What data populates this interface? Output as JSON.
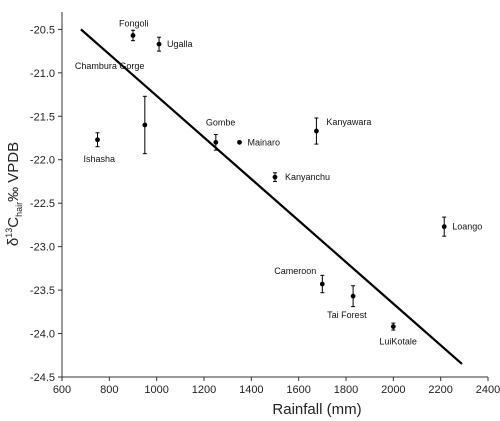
{
  "chart_data": {
    "type": "scatter",
    "title": "",
    "xlabel": "Rainfall (mm)",
    "ylabel": {
      "prefix": "δ",
      "sup": "13",
      "main": "C",
      "sub": "hair",
      "suffix": "‰ VPDB"
    },
    "xlim": [
      600,
      2400
    ],
    "ylim": [
      -24.5,
      -20.3
    ],
    "xticks": [
      600,
      800,
      1000,
      1200,
      1400,
      1600,
      1800,
      2000,
      2200,
      2400
    ],
    "yticks": [
      -24.5,
      -24.0,
      -23.5,
      -23.0,
      -22.5,
      -22.0,
      -21.5,
      -21.0,
      -20.5
    ],
    "ytick_labels": [
      "-24.5",
      "-24.0",
      "-23.5",
      "-23.0",
      "-22.5",
      "-22.0",
      "-21.5",
      "-21.0",
      "-20.5"
    ],
    "grid": false,
    "points": [
      {
        "label": "Fongoli",
        "x": 900,
        "y": -20.57,
        "err": 0.06
      },
      {
        "label": "Ugalla",
        "x": 1010,
        "y": -20.67,
        "err": 0.08
      },
      {
        "label": "Chambura Gorge",
        "x": 950,
        "y": -21.6,
        "err": 0.33
      },
      {
        "label": "Ishasha",
        "x": 750,
        "y": -21.77,
        "err": 0.08
      },
      {
        "label": "Gombe",
        "x": 1250,
        "y": -21.8,
        "err": 0.09
      },
      {
        "label": "Mainaro",
        "x": 1350,
        "y": -21.8,
        "err": 0
      },
      {
        "label": "Kanyawara",
        "x": 1675,
        "y": -21.67,
        "err": 0.15
      },
      {
        "label": "Kanyanchu",
        "x": 1500,
        "y": -22.2,
        "err": 0.05
      },
      {
        "label": "Loango",
        "x": 2215,
        "y": -22.77,
        "err": 0.11
      },
      {
        "label": "Cameroon",
        "x": 1700,
        "y": -23.43,
        "err": 0.1
      },
      {
        "label": "Tai Forest",
        "x": 1830,
        "y": -23.57,
        "err": 0.12
      },
      {
        "label": "LuiKotale",
        "x": 2000,
        "y": -23.92,
        "err": 0.04
      }
    ],
    "fit_line": {
      "x": [
        680,
        2290
      ],
      "y": [
        -20.5,
        -24.35
      ]
    }
  }
}
